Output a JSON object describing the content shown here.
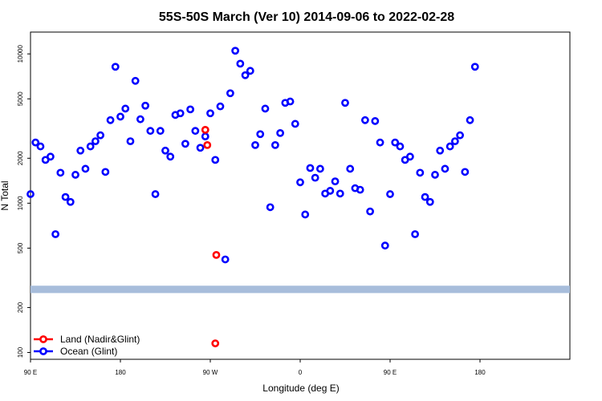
{
  "chart_data": {
    "type": "scatter",
    "title": "55S-50S March (Ver 10)   2014-09-06 to 2022-02-28",
    "xlabel": "Longitude (deg E)",
    "ylabel": "N Total",
    "y_scale": "log",
    "xlim": [
      -90,
      180
    ],
    "ylim": [
      90,
      14000
    ],
    "x_ticks": [
      {
        "value": -90,
        "label": "90 E"
      },
      {
        "value": -45,
        "label": "180"
      },
      {
        "value": 0,
        "label": "90 W"
      },
      {
        "value": 45,
        "label": "0"
      },
      {
        "value": 90,
        "label": "90 E"
      },
      {
        "value": 135,
        "label": "180"
      }
    ],
    "y_ticks": [
      100,
      200,
      500,
      1000,
      2000,
      5000,
      10000
    ],
    "legend_position": "bottom-left",
    "band": {
      "y_low": 250,
      "y_high": 280,
      "color": "#a7bddb"
    },
    "series": [
      {
        "name": "Land (Nadir&Glint)",
        "color": "#ff0000",
        "points": [
          [
            -2.5,
            3100
          ],
          [
            -1.5,
            2450
          ],
          [
            3,
            450
          ],
          [
            2.5,
            115
          ]
        ]
      },
      {
        "name": "Ocean (Glint)",
        "color": "#0000ff",
        "points": [
          [
            -90,
            1150
          ],
          [
            -87.5,
            2550
          ],
          [
            -85,
            2400
          ],
          [
            -82.5,
            1950
          ],
          [
            -80,
            2050
          ],
          [
            -77.5,
            620
          ],
          [
            -75,
            1600
          ],
          [
            -72.5,
            1100
          ],
          [
            -70,
            1020
          ],
          [
            -67.5,
            1550
          ],
          [
            -65,
            2250
          ],
          [
            -62.5,
            1700
          ],
          [
            -60,
            2400
          ],
          [
            -57.5,
            2600
          ],
          [
            -55,
            2850
          ],
          [
            -52.5,
            1620
          ],
          [
            -50,
            3600
          ],
          [
            -47.5,
            8200
          ],
          [
            -45,
            3800
          ],
          [
            -42.5,
            4300
          ],
          [
            -40,
            2600
          ],
          [
            -37.5,
            6600
          ],
          [
            -35,
            3650
          ],
          [
            -32.5,
            4500
          ],
          [
            -30,
            3050
          ],
          [
            -27.5,
            1150
          ],
          [
            -25,
            3050
          ],
          [
            -22.5,
            2250
          ],
          [
            -20,
            2050
          ],
          [
            -17.5,
            3900
          ],
          [
            -15,
            4000
          ],
          [
            -12.5,
            2500
          ],
          [
            -10,
            4250
          ],
          [
            -7.5,
            3050
          ],
          [
            -5,
            2350
          ],
          [
            -2.5,
            2800
          ],
          [
            0,
            4000
          ],
          [
            2.5,
            1950
          ],
          [
            5,
            4450
          ],
          [
            7.5,
            420
          ],
          [
            10,
            5450
          ],
          [
            12.5,
            10500
          ],
          [
            15,
            8600
          ],
          [
            17.5,
            7200
          ],
          [
            20,
            7700
          ],
          [
            22.5,
            2450
          ],
          [
            25,
            2900
          ],
          [
            27.5,
            4300
          ],
          [
            30,
            940
          ],
          [
            32.5,
            2450
          ],
          [
            35,
            2950
          ],
          [
            37.5,
            4700
          ],
          [
            40,
            4800
          ],
          [
            42.5,
            3400
          ],
          [
            45,
            1380
          ],
          [
            47.5,
            840
          ],
          [
            50,
            1720
          ],
          [
            52.5,
            1480
          ],
          [
            55,
            1700
          ],
          [
            57.5,
            1160
          ],
          [
            60,
            1210
          ],
          [
            62.5,
            1400
          ],
          [
            65,
            1160
          ],
          [
            67.5,
            4700
          ],
          [
            70,
            1700
          ],
          [
            72.5,
            1260
          ],
          [
            75,
            1230
          ],
          [
            77.5,
            3600
          ],
          [
            80,
            880
          ],
          [
            82.5,
            3550
          ],
          [
            85,
            2550
          ],
          [
            87.5,
            520
          ],
          [
            90,
            1150
          ],
          [
            92.5,
            2550
          ],
          [
            95,
            2400
          ],
          [
            97.5,
            1950
          ],
          [
            100,
            2050
          ],
          [
            102.5,
            620
          ],
          [
            105,
            1600
          ],
          [
            107.5,
            1100
          ],
          [
            110,
            1020
          ],
          [
            112.5,
            1550
          ],
          [
            115,
            2250
          ],
          [
            117.5,
            1700
          ],
          [
            120,
            2400
          ],
          [
            122.5,
            2600
          ],
          [
            125,
            2850
          ],
          [
            127.5,
            1620
          ],
          [
            130,
            3600
          ],
          [
            132.5,
            8200
          ]
        ]
      }
    ]
  }
}
